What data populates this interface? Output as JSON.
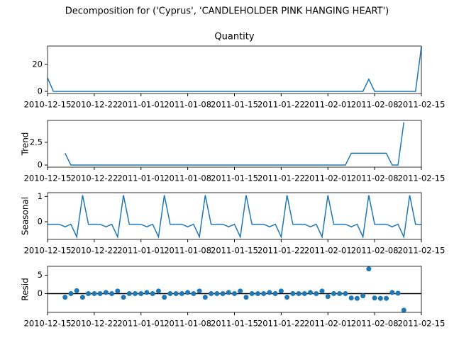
{
  "title": "Decomposition for ('Cyprus', 'CANDLEHOLDER PINK HANGING HEART')",
  "chart_data": [
    {
      "type": "line",
      "title": "Quantity",
      "color": "#1f77b4",
      "values": [
        10,
        0,
        0,
        0,
        0,
        0,
        0,
        0,
        0,
        0,
        0,
        0,
        0,
        0,
        0,
        0,
        0,
        0,
        0,
        0,
        0,
        0,
        0,
        0,
        0,
        0,
        0,
        0,
        0,
        0,
        0,
        0,
        0,
        0,
        0,
        0,
        0,
        0,
        0,
        0,
        0,
        0,
        0,
        0,
        0,
        0,
        0,
        0,
        0,
        0,
        0,
        0,
        0,
        0,
        0,
        9,
        0,
        0,
        0,
        0,
        0,
        0,
        0,
        0,
        33
      ],
      "xlim": [
        0,
        64
      ],
      "ylim": [
        -1.6,
        33.6
      ],
      "yticks": [
        0,
        20
      ],
      "xticks": [
        {
          "value": 0,
          "label": "2010-12-15"
        },
        {
          "value": 8,
          "label": "2010-12-22"
        },
        {
          "value": 16,
          "label": "2011-01-01"
        },
        {
          "value": 24,
          "label": "2011-01-08"
        },
        {
          "value": 32,
          "label": "2011-01-15"
        },
        {
          "value": 40,
          "label": "2011-01-22"
        },
        {
          "value": 48,
          "label": "2011-02-01"
        },
        {
          "value": 56,
          "label": "2011-02-08"
        },
        {
          "value": 64,
          "label": "2011-02-15"
        }
      ]
    },
    {
      "type": "line",
      "ylabel": "Trend",
      "color": "#1f77b4",
      "values": [
        null,
        null,
        null,
        1.3,
        0,
        0,
        0,
        0,
        0,
        0,
        0,
        0,
        0,
        0,
        0,
        0,
        0,
        0,
        0,
        0,
        0,
        0,
        0,
        0,
        0,
        0,
        0,
        0,
        0,
        0,
        0,
        0,
        0,
        0,
        0,
        0,
        0,
        0,
        0,
        0,
        0,
        0,
        0,
        0,
        0,
        0,
        0,
        0,
        0,
        0,
        0,
        0,
        1.3,
        1.3,
        1.3,
        1.3,
        1.3,
        1.3,
        1.3,
        0,
        0,
        4.7,
        null,
        null,
        null
      ],
      "xlim": [
        0,
        64
      ],
      "ylim": [
        -0.23,
        4.9
      ],
      "yticks": [
        0,
        2.5
      ],
      "xticks": [
        {
          "value": 0,
          "label": "2010-12-15"
        },
        {
          "value": 8,
          "label": "2010-12-22"
        },
        {
          "value": 16,
          "label": "2011-01-01"
        },
        {
          "value": 24,
          "label": "2011-01-08"
        },
        {
          "value": 32,
          "label": "2011-01-15"
        },
        {
          "value": 40,
          "label": "2011-01-22"
        },
        {
          "value": 48,
          "label": "2011-02-01"
        },
        {
          "value": 56,
          "label": "2011-02-08"
        },
        {
          "value": 64,
          "label": "2011-02-15"
        }
      ]
    },
    {
      "type": "line",
      "ylabel": "Seasonal",
      "color": "#1f77b4",
      "values": [
        -0.1,
        -0.1,
        -0.1,
        -0.2,
        -0.1,
        -0.6,
        1.05,
        -0.1,
        -0.1,
        -0.1,
        -0.2,
        -0.1,
        -0.6,
        1.05,
        -0.1,
        -0.1,
        -0.1,
        -0.2,
        -0.1,
        -0.6,
        1.05,
        -0.1,
        -0.1,
        -0.1,
        -0.2,
        -0.1,
        -0.6,
        1.05,
        -0.1,
        -0.1,
        -0.1,
        -0.2,
        -0.1,
        -0.6,
        1.05,
        -0.1,
        -0.1,
        -0.1,
        -0.2,
        -0.1,
        -0.6,
        1.05,
        -0.1,
        -0.1,
        -0.1,
        -0.2,
        -0.1,
        -0.6,
        1.05,
        -0.1,
        -0.1,
        -0.1,
        -0.2,
        -0.1,
        -0.6,
        1.05,
        -0.1,
        -0.1,
        -0.1,
        -0.2,
        -0.1,
        -0.6,
        1.05,
        -0.1,
        -0.1
      ],
      "xlim": [
        0,
        64
      ],
      "ylim": [
        -0.7,
        1.15
      ],
      "yticks": [
        0,
        1
      ],
      "xticks": [
        {
          "value": 0,
          "label": "2010-12-15"
        },
        {
          "value": 8,
          "label": "2010-12-22"
        },
        {
          "value": 16,
          "label": "2011-01-01"
        },
        {
          "value": 24,
          "label": "2011-01-08"
        },
        {
          "value": 32,
          "label": "2011-01-15"
        },
        {
          "value": 40,
          "label": "2011-01-22"
        },
        {
          "value": 48,
          "label": "2011-02-01"
        },
        {
          "value": 56,
          "label": "2011-02-08"
        },
        {
          "value": 64,
          "label": "2011-02-15"
        }
      ]
    },
    {
      "type": "scatter",
      "ylabel": "Resid",
      "color": "#1f77b4",
      "zero_line": true,
      "values": [
        null,
        null,
        null,
        -1,
        0,
        0.8,
        -1,
        0,
        0,
        0,
        0.3,
        0,
        0.7,
        -1,
        0,
        0,
        0,
        0.3,
        0,
        0.7,
        -1,
        0,
        0,
        0,
        0.3,
        0,
        0.7,
        -1,
        0,
        0,
        0,
        0.3,
        0,
        0.7,
        -1,
        0,
        0,
        0,
        0.3,
        0,
        0.7,
        -1,
        0,
        0,
        0,
        0.3,
        0,
        0.7,
        -0.8,
        0,
        0,
        0,
        -1.2,
        -1.3,
        -0.6,
        6.7,
        -1.2,
        -1.3,
        -1.3,
        0.3,
        0.1,
        -4.5,
        null,
        null,
        null
      ],
      "xlim": [
        0,
        64
      ],
      "ylim": [
        -5.1,
        7.4
      ],
      "yticks": [
        0,
        5
      ],
      "xticks": [
        {
          "value": 0,
          "label": "2010-12-15"
        },
        {
          "value": 8,
          "label": "2010-12-22"
        },
        {
          "value": 16,
          "label": "2011-01-01"
        },
        {
          "value": 24,
          "label": "2011-01-08"
        },
        {
          "value": 32,
          "label": "2011-01-15"
        },
        {
          "value": 40,
          "label": "2011-01-22"
        },
        {
          "value": 48,
          "label": "2011-02-01"
        },
        {
          "value": 56,
          "label": "2011-02-08"
        },
        {
          "value": 64,
          "label": "2011-02-15"
        }
      ]
    }
  ]
}
